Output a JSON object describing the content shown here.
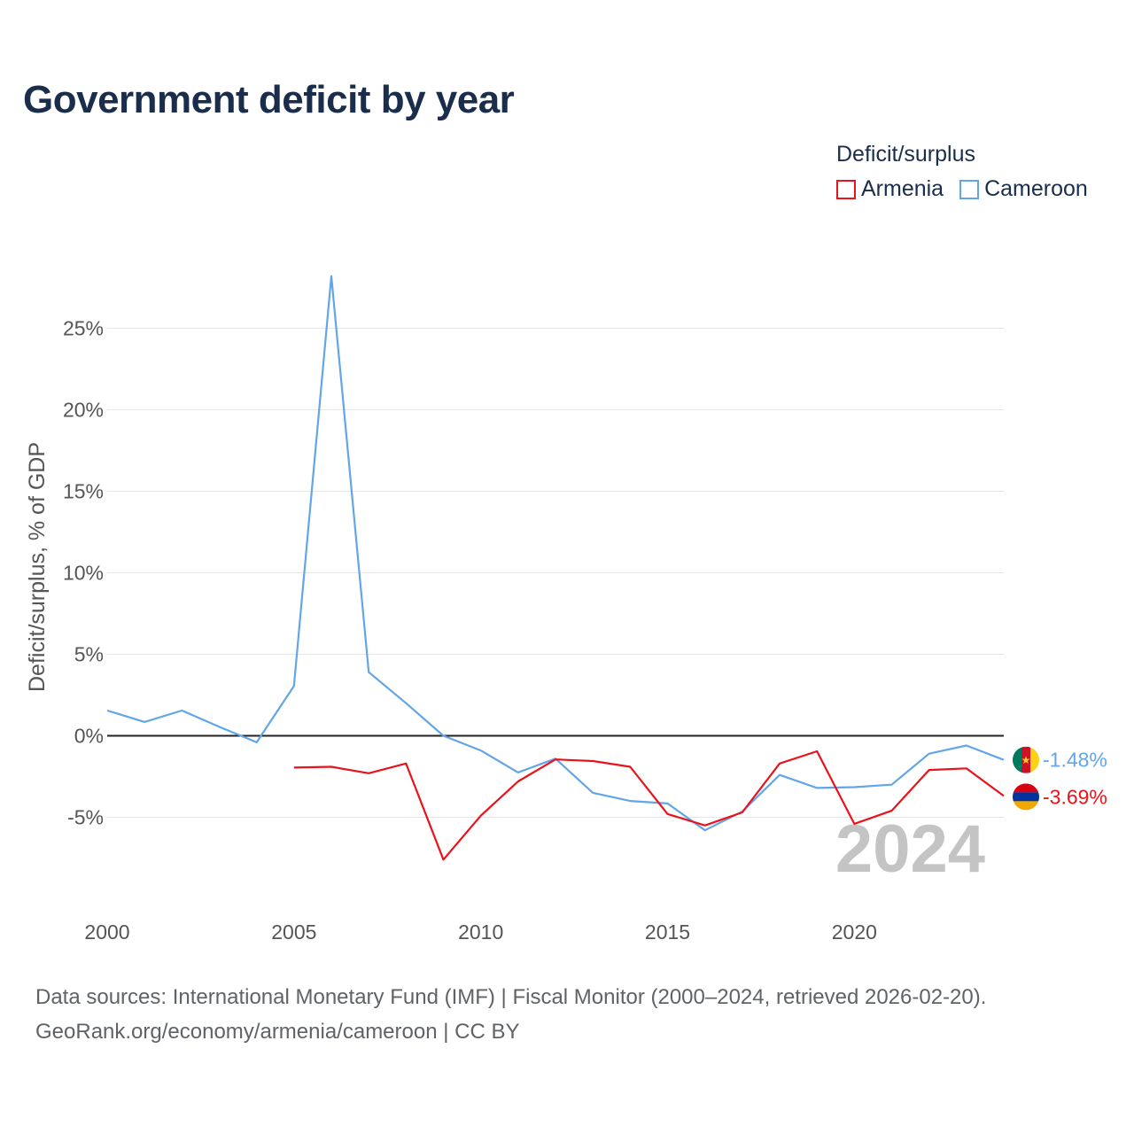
{
  "title": "Government deficit by year",
  "legend": {
    "title": "Deficit/surplus",
    "items": [
      {
        "label": "Armenia",
        "color": "#e8131b"
      },
      {
        "label": "Cameroon",
        "color": "#62a6e8"
      }
    ]
  },
  "source": {
    "line1": "Data sources: International Monetary Fund (IMF) | Fiscal Monitor (2000–2024, retrieved 2026-02-20).",
    "line2": "GeoRank.org/economy/armenia/cameroon | CC BY"
  },
  "chart_data": {
    "type": "line",
    "title": "Government deficit by year",
    "xlabel": "",
    "ylabel": "Deficit/surplus, % of GDP",
    "xlim": [
      2000,
      2024
    ],
    "ylim": [
      -9,
      30
    ],
    "grid": true,
    "year_watermark": "2024",
    "x_ticks": [
      2000,
      2005,
      2010,
      2015,
      2020
    ],
    "x_tick_labels": [
      "2000",
      "2005",
      "2010",
      "2015",
      "2020"
    ],
    "y_ticks": [
      -5,
      0,
      5,
      10,
      15,
      20,
      25
    ],
    "y_tick_labels": [
      "-5%",
      "0%",
      "5%",
      "10%",
      "15%",
      "20%",
      "25%"
    ],
    "series": [
      {
        "name": "Armenia",
        "color": "#e8131b",
        "end_label": "-3.69%",
        "flag": "armenia",
        "x": [
          2005,
          2006,
          2007,
          2008,
          2009,
          2010,
          2011,
          2012,
          2013,
          2014,
          2015,
          2016,
          2017,
          2018,
          2019,
          2020,
          2021,
          2022,
          2023,
          2024
        ],
        "values": [
          -1.95,
          -1.9,
          -2.3,
          -1.7,
          -7.6,
          -4.9,
          -2.8,
          -1.45,
          -1.55,
          -1.9,
          -4.8,
          -5.5,
          -4.7,
          -1.7,
          -0.95,
          -5.4,
          -4.6,
          -2.1,
          -2.0,
          -3.69
        ]
      },
      {
        "name": "Cameroon",
        "color": "#62a6e8",
        "end_label": "-1.48%",
        "flag": "cameroon",
        "x": [
          2000,
          2001,
          2002,
          2003,
          2004,
          2005,
          2006,
          2007,
          2008,
          2009,
          2010,
          2011,
          2012,
          2013,
          2014,
          2015,
          2016,
          2017,
          2018,
          2019,
          2020,
          2021,
          2022,
          2023,
          2024
        ],
        "values": [
          1.55,
          0.85,
          1.55,
          0.55,
          -0.4,
          3.05,
          28.2,
          3.9,
          2.0,
          0.0,
          -0.9,
          -2.25,
          -1.4,
          -3.5,
          -4.0,
          -4.15,
          -5.8,
          -4.65,
          -2.4,
          -3.2,
          -3.15,
          -3.0,
          -1.1,
          -0.6,
          -1.48
        ]
      }
    ]
  }
}
